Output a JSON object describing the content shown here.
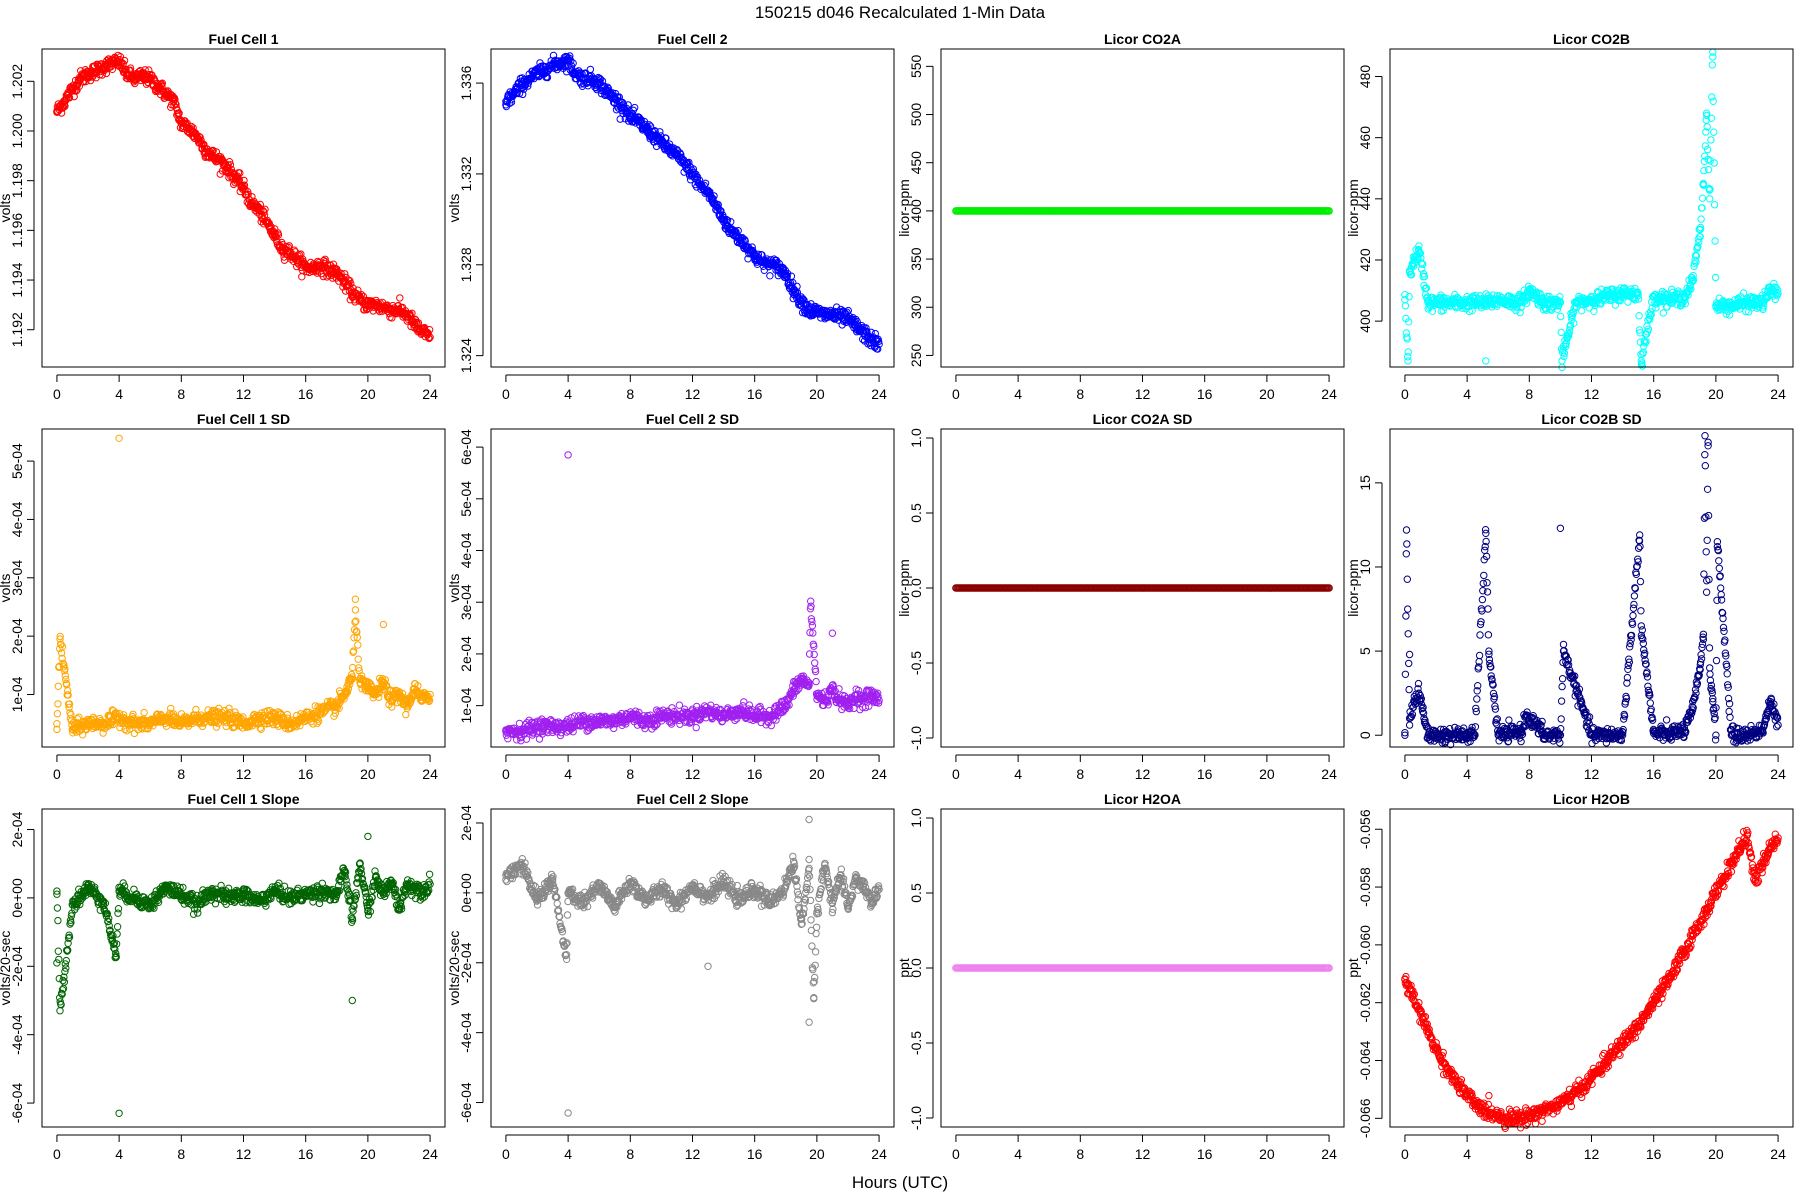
{
  "title": "150215   d046   Recalculated 1-Min Data",
  "xlabel": "Hours (UTC)",
  "chart_data": [
    {
      "type": "scatter",
      "title": "Fuel Cell 1",
      "ylabel": "volts",
      "color": "#ff0000",
      "xlim": [
        0,
        24
      ],
      "ylim": [
        1.1905,
        1.2033
      ],
      "yticks": [
        1.192,
        1.194,
        1.196,
        1.198,
        1.2,
        1.202
      ],
      "ytick_labels": [
        "1.192",
        "1.194",
        "1.196",
        "1.198",
        "1.200",
        "1.202"
      ],
      "x": [
        0,
        0.5,
        1,
        1.5,
        2,
        2.5,
        3,
        3.5,
        4,
        4.5,
        5,
        5.5,
        6,
        6.5,
        7,
        7.5,
        8,
        8.5,
        9,
        9.5,
        10,
        10.5,
        11,
        11.5,
        12,
        12.5,
        13,
        13.5,
        14,
        14.5,
        15,
        15.5,
        16,
        16.5,
        17,
        17.5,
        18,
        18.5,
        19,
        19.5,
        20,
        20.5,
        21,
        21.5,
        22,
        22.5,
        23,
        23.5,
        24
      ],
      "y": [
        1.2008,
        1.2012,
        1.2017,
        1.2021,
        1.2023,
        1.2024,
        1.2026,
        1.2027,
        1.2028,
        1.2023,
        1.2021,
        1.2022,
        1.2021,
        1.2018,
        1.2015,
        1.2012,
        1.2003,
        1.2001,
        1.1998,
        1.1993,
        1.199,
        1.1988,
        1.1985,
        1.1981,
        1.1977,
        1.1971,
        1.1968,
        1.1963,
        1.1958,
        1.1953,
        1.1951,
        1.1948,
        1.1945,
        1.1945,
        1.1946,
        1.1944,
        1.1943,
        1.1939,
        1.1935,
        1.1932,
        1.193,
        1.193,
        1.1929,
        1.1928,
        1.1928,
        1.1926,
        1.1922,
        1.1919,
        1.1917
      ]
    },
    {
      "type": "scatter",
      "title": "Fuel Cell 2",
      "ylabel": "volts",
      "color": "#0000ff",
      "xlim": [
        0,
        24
      ],
      "ylim": [
        1.3235,
        1.3375
      ],
      "yticks": [
        1.324,
        1.328,
        1.332,
        1.336
      ],
      "ytick_labels": [
        "1.324",
        "1.328",
        "1.332",
        "1.336"
      ],
      "x": [
        0,
        0.5,
        1,
        1.5,
        2,
        2.5,
        3,
        3.5,
        4,
        4.5,
        5,
        5.5,
        6,
        6.5,
        7,
        7.5,
        8,
        8.5,
        9,
        9.5,
        10,
        10.5,
        11,
        11.5,
        12,
        12.5,
        13,
        13.5,
        14,
        14.5,
        15,
        15.5,
        16,
        16.5,
        17,
        17.5,
        18,
        18.5,
        19,
        19.5,
        20,
        20.5,
        21,
        21.5,
        22,
        22.5,
        23,
        23.5,
        24
      ],
      "y": [
        1.3352,
        1.3355,
        1.3359,
        1.3362,
        1.3364,
        1.3366,
        1.3368,
        1.3369,
        1.337,
        1.3364,
        1.3362,
        1.3362,
        1.336,
        1.3356,
        1.3353,
        1.335,
        1.3345,
        1.3343,
        1.334,
        1.3337,
        1.3334,
        1.3331,
        1.3328,
        1.3324,
        1.332,
        1.3315,
        1.3312,
        1.3306,
        1.33,
        1.3295,
        1.3292,
        1.3288,
        1.3284,
        1.3281,
        1.328,
        1.3279,
        1.3276,
        1.3269,
        1.3264,
        1.326,
        1.3259,
        1.3258,
        1.3258,
        1.3257,
        1.3256,
        1.3253,
        1.325,
        1.3247,
        1.3245
      ]
    },
    {
      "type": "scatter",
      "title": "Licor CO2A",
      "ylabel": "licor-ppm",
      "color": "#00ee00",
      "xlim": [
        0,
        24
      ],
      "ylim": [
        238,
        568
      ],
      "yticks": [
        250,
        300,
        350,
        400,
        450,
        500,
        550
      ],
      "ytick_labels": [
        "250",
        "300",
        "350",
        "400",
        "450",
        "500",
        "550"
      ],
      "x": [
        0,
        2,
        4,
        6,
        8,
        10,
        12,
        14,
        16,
        18,
        20,
        22,
        24
      ],
      "y": [
        400,
        400,
        400,
        400,
        400,
        400,
        400,
        400,
        400,
        400,
        400,
        400,
        400
      ]
    },
    {
      "type": "scatter",
      "title": "Licor CO2B",
      "ylabel": "licor-ppm",
      "color": "#00ffff",
      "xlim": [
        0,
        24
      ],
      "ylim": [
        385,
        489
      ],
      "yticks": [
        400,
        420,
        440,
        460,
        480
      ],
      "ytick_labels": [
        "400",
        "420",
        "440",
        "460",
        "480"
      ],
      "x": [
        0,
        0.3,
        0.6,
        0.9,
        1.5,
        3,
        4.5,
        5.2,
        6,
        7.5,
        8,
        9,
        10,
        11,
        12,
        13,
        14,
        15,
        16,
        17,
        18,
        18.5,
        19,
        19.2,
        19.4,
        19.6,
        20,
        20.5,
        21,
        22,
        23,
        23.5,
        24,
        0.2,
        5.2,
        10.1,
        15.2,
        19.8
      ],
      "y": [
        407,
        416,
        420,
        423,
        406,
        406,
        406,
        406,
        407,
        406,
        410,
        406,
        406,
        406,
        407,
        408,
        409,
        409,
        408,
        407,
        408,
        413,
        430,
        445,
        468,
        440,
        405,
        405,
        405,
        406,
        406,
        410,
        409,
        387,
        387,
        387,
        387,
        488
      ]
    },
    {
      "type": "scatter",
      "title": "Fuel Cell 1 SD",
      "ylabel": "volts",
      "color": "#ffa500",
      "xlim": [
        0,
        24
      ],
      "ylim": [
        1e-05,
        0.000555
      ],
      "yticks": [
        0.0001,
        0.0002,
        0.0003,
        0.0004,
        0.0005
      ],
      "ytick_labels": [
        "1e-04",
        "2e-04",
        "3e-04",
        "4e-04",
        "5e-04"
      ],
      "x": [
        0,
        1,
        2,
        3,
        4,
        5,
        6,
        7,
        8,
        9,
        10,
        11,
        12,
        13,
        14,
        15,
        16,
        17,
        18,
        18.5,
        19,
        19.5,
        20,
        20.5,
        21,
        21.5,
        22,
        22.5,
        23,
        23.5,
        24,
        4,
        0.2,
        19.2,
        21
      ],
      "y": [
        5e-05,
        4e-05,
        5e-05,
        5e-05,
        6e-05,
        5e-05,
        5e-05,
        6e-05,
        5e-05,
        6e-05,
        6e-05,
        6e-05,
        5e-05,
        6e-05,
        6e-05,
        5e-05,
        6e-05,
        7e-05,
        8e-05,
        0.0001,
        0.00013,
        0.00012,
        0.00011,
        0.0001,
        0.00012,
        9e-05,
        0.0001,
        8e-05,
        0.00011,
        9e-05,
        0.0001,
        0.000539,
        0.000195,
        0.000245,
        0.00022
      ]
    },
    {
      "type": "scatter",
      "title": "Fuel Cell 2 SD",
      "ylabel": "volts",
      "color": "#a020f0",
      "xlim": [
        0,
        24
      ],
      "ylim": [
        2e-05,
        0.000635
      ],
      "yticks": [
        0.0001,
        0.0002,
        0.0003,
        0.0004,
        0.0005,
        0.0006
      ],
      "ytick_labels": [
        "1e-04",
        "2e-04",
        "3e-04",
        "4e-04",
        "5e-04",
        "6e-04"
      ],
      "x": [
        0,
        1,
        2,
        3,
        4,
        5,
        6,
        7,
        8,
        9,
        10,
        11,
        12,
        13,
        14,
        15,
        16,
        17,
        18,
        18.5,
        19,
        19.5,
        20,
        20.5,
        21,
        21.5,
        22,
        22.5,
        23,
        23.5,
        24,
        4,
        19.6,
        21
      ],
      "y": [
        5e-05,
        5e-05,
        6e-05,
        6e-05,
        6e-05,
        7e-05,
        7e-05,
        7e-05,
        8e-05,
        7e-05,
        8e-05,
        8e-05,
        8e-05,
        9e-05,
        8e-05,
        9e-05,
        8e-05,
        8e-05,
        0.0001,
        0.00013,
        0.00015,
        0.00014,
        0.00012,
        0.00011,
        0.00013,
        0.00011,
        0.0001,
        0.00012,
        0.00011,
        0.00012,
        0.00011,
        0.000585,
        0.000302,
        0.00024
      ]
    },
    {
      "type": "scatter",
      "title": "Licor CO2A SD",
      "ylabel": "licor-ppm",
      "color": "#8b0000",
      "xlim": [
        0,
        24
      ],
      "ylim": [
        -1.06,
        1.06
      ],
      "yticks": [
        -1,
        -0.5,
        0,
        0.5,
        1
      ],
      "ytick_labels": [
        "-1.0",
        "-0.5",
        "0.0",
        "0.5",
        "1.0"
      ],
      "x": [
        0,
        2,
        4,
        6,
        8,
        10,
        12,
        14,
        16,
        18,
        20,
        22,
        24
      ],
      "y": [
        0,
        0,
        0,
        0,
        0,
        0,
        0,
        0,
        0,
        0,
        0,
        0,
        0
      ]
    },
    {
      "type": "scatter",
      "title": "Licor CO2B SD",
      "ylabel": "licor-ppm",
      "color": "#000080",
      "xlim": [
        0,
        24
      ],
      "ylim": [
        -0.7,
        18.2
      ],
      "yticks": [
        0,
        5,
        10,
        15
      ],
      "ytick_labels": [
        "0",
        "5",
        "10",
        "15"
      ],
      "x": [
        0,
        0.3,
        0.6,
        0.9,
        1.5,
        3,
        4.5,
        6,
        7.5,
        7.8,
        9,
        10,
        12,
        14,
        16,
        17,
        18,
        18.5,
        18.9,
        19,
        19.2,
        19.4,
        19.6,
        19.8,
        20,
        21,
        22,
        23,
        23.5,
        24,
        0.1,
        0.3,
        5.2,
        10,
        15.1,
        19.3,
        19.5,
        10.2,
        5.4,
        15.2,
        20.1
      ],
      "y": [
        0,
        1,
        2,
        2.5,
        0,
        0,
        0,
        0,
        0.2,
        1.2,
        0,
        0,
        0,
        0,
        0.1,
        0.1,
        0.3,
        1.5,
        3.5,
        4.2,
        6,
        8.5,
        4,
        2,
        0,
        0,
        0,
        0.3,
        2,
        0.6,
        12.2,
        4.8,
        12.0,
        12.3,
        11.9,
        17.8,
        17.2,
        5,
        5,
        6.5,
        11.5
      ]
    },
    {
      "type": "scatter",
      "title": "Fuel Cell 1 Slope",
      "ylabel": "volts/20-sec",
      "color": "#006400",
      "xlim": [
        0,
        24
      ],
      "ylim": [
        -0.00067,
        0.00026
      ],
      "yticks": [
        -0.0006,
        -0.0004,
        -0.0002,
        0,
        0.0002
      ],
      "ytick_labels": [
        "-6e-04",
        "-4e-04",
        "-2e-04",
        "0e+00",
        "2e-04"
      ],
      "x": [
        0,
        1,
        2,
        3,
        4,
        5,
        6,
        7,
        8,
        9,
        10,
        11,
        12,
        13,
        14,
        15,
        16,
        17,
        18,
        18.5,
        19,
        19.5,
        20,
        20.5,
        21,
        21.5,
        22,
        22.5,
        23,
        23.5,
        24,
        4,
        0.2,
        19,
        20,
        0,
        3.8
      ],
      "y": [
        2e-05,
        -2e-05,
        3e-05,
        -1e-05,
        2e-05,
        0.0,
        -2e-05,
        3e-05,
        1e-05,
        -2e-05,
        2e-05,
        0.0,
        1e-05,
        -1e-05,
        2e-05,
        0.0,
        1e-05,
        2e-05,
        1e-05,
        8e-05,
        -6e-05,
        0.0001,
        -4e-05,
        6e-05,
        1e-05,
        5e-05,
        -3e-05,
        4e-05,
        3e-05,
        2e-05,
        4e-05,
        -0.00063,
        -0.00033,
        -0.0003,
        0.00018,
        -0.00019,
        -0.00017
      ]
    },
    {
      "type": "scatter",
      "title": "Fuel Cell 2 Slope",
      "ylabel": "volts/20-sec",
      "color": "#888888",
      "xlim": [
        0,
        24
      ],
      "ylim": [
        -0.00067,
        0.00024
      ],
      "yticks": [
        -0.0006,
        -0.0004,
        -0.0002,
        0,
        0.0002
      ],
      "ytick_labels": [
        "-6e-04",
        "-4e-04",
        "-2e-04",
        "0e+00",
        "2e-04"
      ],
      "x": [
        0,
        1,
        2,
        3,
        4,
        5,
        6,
        7,
        8,
        9,
        10,
        11,
        12,
        13,
        14,
        15,
        16,
        17,
        18,
        18.5,
        19,
        19.5,
        20,
        20.5,
        21,
        21.5,
        22,
        22.5,
        23,
        23.5,
        24,
        4,
        19.5,
        19.8,
        3.9,
        13,
        19.5
      ],
      "y": [
        5e-05,
        8e-05,
        -2e-05,
        4e-05,
        0.0,
        -3e-05,
        2e-05,
        -4e-05,
        3e-05,
        -2e-05,
        1e-05,
        -3e-05,
        2e-05,
        -1e-05,
        3e-05,
        -2e-05,
        1e-05,
        -3e-05,
        2e-05,
        9e-05,
        -9e-05,
        7e-05,
        -6e-05,
        8e-05,
        -3e-05,
        5e-05,
        -4e-05,
        4e-05,
        2e-05,
        -3e-05,
        1e-05,
        -0.00063,
        0.00021,
        -0.0003,
        -0.00019,
        -0.00021,
        -0.00037
      ]
    },
    {
      "type": "scatter",
      "title": "Licor H2OA",
      "ylabel": "ppt",
      "color": "#ee82ee",
      "xlim": [
        0,
        24
      ],
      "ylim": [
        -1.06,
        1.06
      ],
      "yticks": [
        -1,
        -0.5,
        0,
        0.5,
        1
      ],
      "ytick_labels": [
        "-1.0",
        "-0.5",
        "0.0",
        "0.5",
        "1.0"
      ],
      "x": [
        0,
        2,
        4,
        6,
        8,
        10,
        12,
        14,
        16,
        18,
        20,
        22,
        24
      ],
      "y": [
        0,
        0,
        0,
        0,
        0,
        0,
        0,
        0,
        0,
        0,
        0,
        0,
        0
      ]
    },
    {
      "type": "scatter",
      "title": "Licor H2OB",
      "ylabel": "ppt",
      "color": "#ff0000",
      "xlim": [
        0,
        24
      ],
      "ylim": [
        -0.0663,
        -0.0553
      ],
      "yticks": [
        -0.066,
        -0.064,
        -0.062,
        -0.06,
        -0.058,
        -0.056
      ],
      "ytick_labels": [
        "-0.066",
        "-0.064",
        "-0.062",
        "-0.060",
        "-0.058",
        "-0.056"
      ],
      "x": [
        0,
        0.5,
        1,
        1.5,
        2,
        2.5,
        3,
        3.5,
        4,
        4.5,
        5,
        5.5,
        6,
        6.5,
        7,
        7.5,
        8,
        8.5,
        9,
        9.5,
        10,
        10.5,
        11,
        11.5,
        12,
        12.5,
        13,
        13.5,
        14,
        14.5,
        15,
        15.5,
        16,
        16.5,
        17,
        17.5,
        18,
        18.5,
        19,
        19.5,
        20,
        20.5,
        21,
        21.5,
        22,
        22.5,
        23,
        23.5,
        24
      ],
      "y": [
        -0.0612,
        -0.0618,
        -0.0624,
        -0.063,
        -0.0636,
        -0.0641,
        -0.0645,
        -0.0649,
        -0.0652,
        -0.0655,
        -0.0657,
        -0.0658,
        -0.0659,
        -0.066,
        -0.066,
        -0.066,
        -0.0659,
        -0.0658,
        -0.0657,
        -0.0656,
        -0.0655,
        -0.0653,
        -0.0651,
        -0.0649,
        -0.0646,
        -0.0643,
        -0.064,
        -0.0637,
        -0.0634,
        -0.0631,
        -0.0628,
        -0.0624,
        -0.062,
        -0.0616,
        -0.0612,
        -0.0607,
        -0.0602,
        -0.0597,
        -0.0592,
        -0.0587,
        -0.0582,
        -0.0577,
        -0.0572,
        -0.0567,
        -0.0562,
        -0.0578,
        -0.0572,
        -0.0567,
        -0.0563
      ]
    }
  ]
}
